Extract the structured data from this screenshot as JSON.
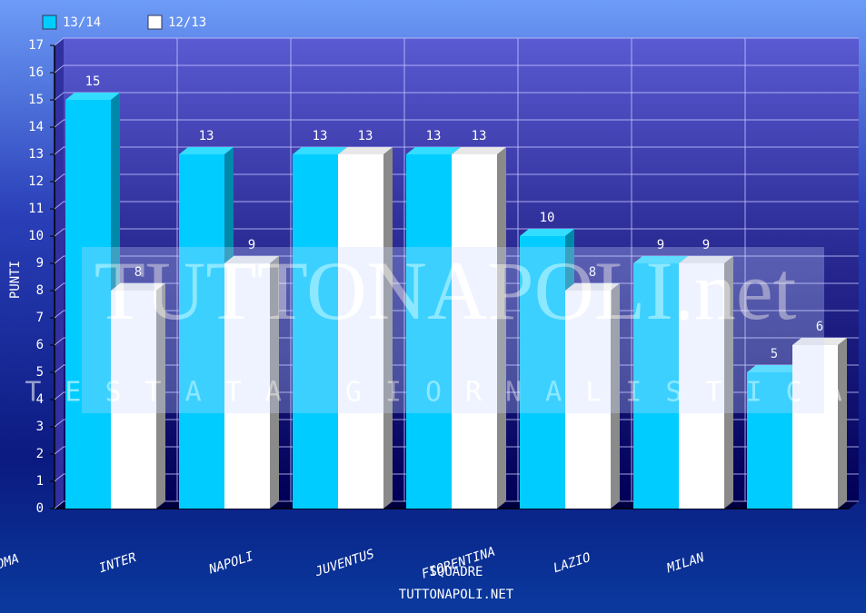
{
  "chart_data": {
    "type": "bar",
    "categories": [
      "ROMA",
      "INTER",
      "NAPOLI",
      "JUVENTUS",
      "FIORENTINA",
      "LAZIO",
      "MILAN"
    ],
    "series": [
      {
        "name": "13/14",
        "color": "#00ccff",
        "values": [
          15,
          13,
          13,
          13,
          10,
          9,
          5
        ]
      },
      {
        "name": "12/13",
        "color": "#ffffff",
        "values": [
          8,
          9,
          13,
          13,
          8,
          9,
          6
        ]
      }
    ],
    "ylim": [
      0,
      17
    ],
    "yticks": [
      0,
      1,
      2,
      3,
      4,
      5,
      6,
      7,
      8,
      9,
      10,
      11,
      12,
      13,
      14,
      15,
      16,
      17
    ],
    "ylabel": "PUNTI",
    "xlabel": "SQUADRE",
    "footer": "TUTTONAPOLI.NET",
    "grid": true,
    "legend": "top-left",
    "watermark": {
      "title": "TUTTONAPOLI.net",
      "subtitle": "TESTATA GIORNALISTICA"
    }
  }
}
